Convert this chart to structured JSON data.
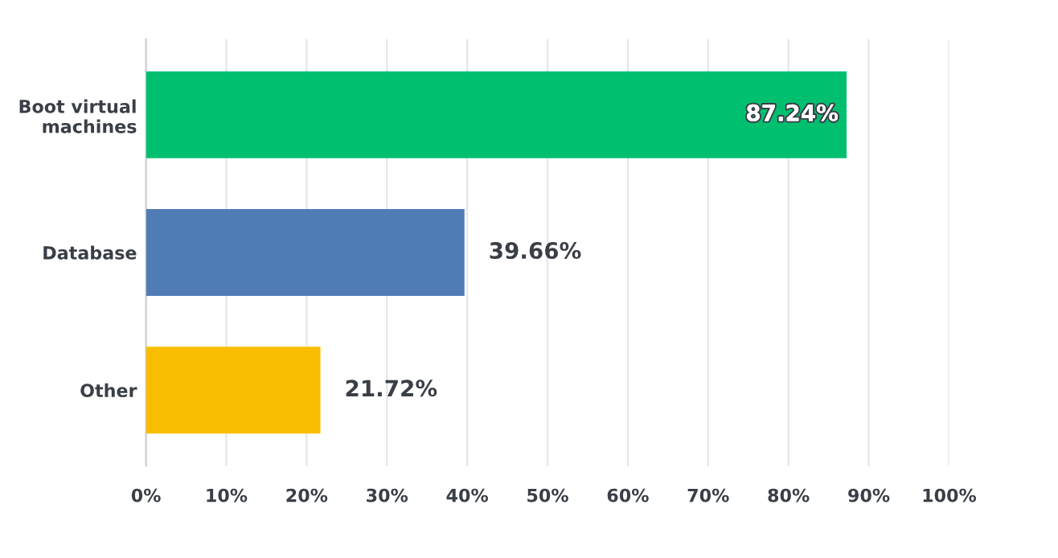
{
  "chart_data": {
    "type": "bar",
    "orientation": "horizontal",
    "categories": [
      "Boot virtual\nmachines",
      "Database",
      "Other"
    ],
    "values": [
      87.24,
      39.66,
      21.72
    ],
    "colors": [
      "#00bf6f",
      "#507cb6",
      "#f9be00"
    ],
    "value_labels": [
      "87.24%",
      "39.66%",
      "21.72%"
    ],
    "xlim": [
      0,
      100
    ],
    "xticks": [
      {
        "value": 0,
        "label": "0%"
      },
      {
        "value": 10,
        "label": "10%"
      },
      {
        "value": 20,
        "label": "20%"
      },
      {
        "value": 30,
        "label": "30%"
      },
      {
        "value": 40,
        "label": "40%"
      },
      {
        "value": 50,
        "label": "50%"
      },
      {
        "value": 60,
        "label": "60%"
      },
      {
        "value": 70,
        "label": "70%"
      },
      {
        "value": 80,
        "label": "80%"
      },
      {
        "value": 90,
        "label": "90%"
      },
      {
        "value": 100,
        "label": "100%"
      }
    ],
    "grid": "x",
    "legend": false
  }
}
